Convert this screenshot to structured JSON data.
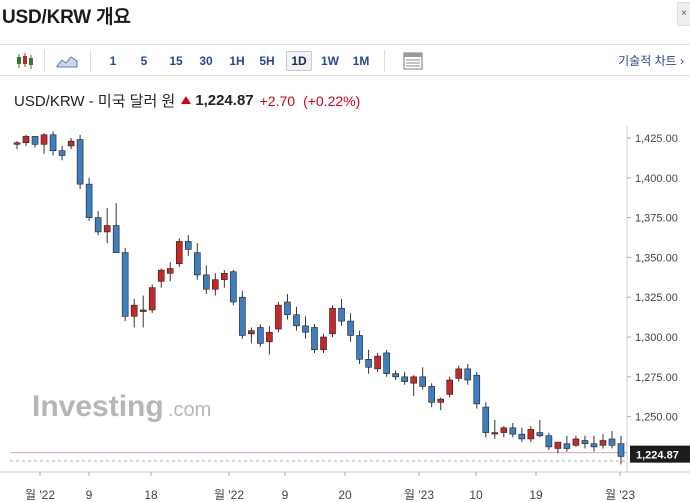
{
  "header": {
    "title": "USD/KRW 개요",
    "close_label": "×"
  },
  "toolbar": {
    "candle_icon": "candlestick-icon",
    "area_icon": "area-chart-icon",
    "intervals": [
      "1",
      "5",
      "15",
      "30",
      "1H",
      "5H",
      "1D",
      "1W",
      "1M"
    ],
    "active_interval": "1D",
    "table_icon": "table-icon",
    "technical_label": "기술적 차트 ›"
  },
  "quote": {
    "name": "USD/KRW - 미국 달러 원",
    "price": "1,224.87",
    "change": "+2.70",
    "change_pct": "(+0.22%)",
    "direction": "up",
    "color": "#d0021b"
  },
  "watermark": {
    "brand": "Investing",
    "suffix": ".com"
  },
  "chart_data": {
    "type": "candlestick",
    "ylim": [
      1219,
      1430
    ],
    "yticks": [
      "1,425.00",
      "1,400.00",
      "1,375.00",
      "1,350.00",
      "1,325.00",
      "1,300.00",
      "1,275.00",
      "1,250.00"
    ],
    "ytick_values": [
      1425,
      1400,
      1375,
      1350,
      1325,
      1300,
      1275,
      1250
    ],
    "xticks": [
      "월 '22",
      "9",
      "18",
      "월 '22",
      "9",
      "20",
      "월 '23",
      "10",
      "19",
      "월 '23"
    ],
    "last_price_label": "1,224.87",
    "last_price": 1224.87,
    "prev_close": 1222.17,
    "up_color": "#c62828",
    "down_color": "#3d7ebf",
    "candles": [
      [
        1421,
        1423,
        1418,
        1422
      ],
      [
        1422,
        1427,
        1420,
        1426
      ],
      [
        1426,
        1426,
        1419,
        1421
      ],
      [
        1421,
        1428,
        1415,
        1427
      ],
      [
        1427,
        1429,
        1414,
        1417
      ],
      [
        1417,
        1420,
        1411,
        1414
      ],
      [
        1420,
        1425,
        1418,
        1423
      ],
      [
        1424,
        1427,
        1393,
        1396
      ],
      [
        1396,
        1400,
        1373,
        1375
      ],
      [
        1375,
        1379,
        1364,
        1366
      ],
      [
        1366,
        1381,
        1359,
        1370
      ],
      [
        1370,
        1384,
        1353,
        1353
      ],
      [
        1353,
        1356,
        1310,
        1313
      ],
      [
        1313,
        1324,
        1306,
        1320
      ],
      [
        1316,
        1326,
        1306,
        1317
      ],
      [
        1317,
        1333,
        1315,
        1331
      ],
      [
        1335,
        1343,
        1331,
        1342
      ],
      [
        1340,
        1347,
        1335,
        1343
      ],
      [
        1346,
        1362,
        1344,
        1360
      ],
      [
        1360,
        1364,
        1351,
        1355
      ],
      [
        1353,
        1359,
        1336,
        1339
      ],
      [
        1339,
        1345,
        1327,
        1330
      ],
      [
        1330,
        1340,
        1326,
        1336
      ],
      [
        1336,
        1342,
        1331,
        1340
      ],
      [
        1341,
        1342,
        1320,
        1322
      ],
      [
        1325,
        1329,
        1299,
        1301
      ],
      [
        1302,
        1306,
        1296,
        1304
      ],
      [
        1306,
        1308,
        1294,
        1296
      ],
      [
        1297,
        1307,
        1289,
        1303
      ],
      [
        1305,
        1322,
        1303,
        1320
      ],
      [
        1322,
        1327,
        1311,
        1314
      ],
      [
        1314,
        1319,
        1304,
        1307
      ],
      [
        1307,
        1313,
        1299,
        1303
      ],
      [
        1306,
        1308,
        1290,
        1292
      ],
      [
        1292,
        1302,
        1290,
        1300
      ],
      [
        1302,
        1320,
        1300,
        1318
      ],
      [
        1318,
        1324,
        1307,
        1310
      ],
      [
        1310,
        1315,
        1297,
        1301
      ],
      [
        1301,
        1304,
        1283,
        1286
      ],
      [
        1286,
        1292,
        1277,
        1281
      ],
      [
        1280,
        1290,
        1278,
        1288
      ],
      [
        1290,
        1292,
        1275,
        1277
      ],
      [
        1277,
        1279,
        1273,
        1275
      ],
      [
        1275,
        1278,
        1270,
        1272
      ],
      [
        1271,
        1276,
        1263,
        1275
      ],
      [
        1275,
        1281,
        1267,
        1269
      ],
      [
        1269,
        1271,
        1256,
        1259
      ],
      [
        1259,
        1262,
        1254,
        1261
      ],
      [
        1264,
        1275,
        1262,
        1273
      ],
      [
        1274,
        1282,
        1272,
        1280
      ],
      [
        1280,
        1283,
        1270,
        1273
      ],
      [
        1276,
        1278,
        1255,
        1258
      ],
      [
        1256,
        1259,
        1237,
        1240
      ],
      [
        1240,
        1248,
        1236,
        1240
      ],
      [
        1240,
        1244,
        1237,
        1243
      ],
      [
        1243,
        1246,
        1237,
        1239
      ],
      [
        1239,
        1243,
        1234,
        1236
      ],
      [
        1236,
        1244,
        1234,
        1242
      ],
      [
        1240,
        1248,
        1237,
        1238
      ],
      [
        1238,
        1240,
        1229,
        1231
      ],
      [
        1230,
        1234,
        1227,
        1234
      ],
      [
        1233,
        1238,
        1228,
        1230
      ],
      [
        1232,
        1238,
        1231,
        1236
      ],
      [
        1235,
        1238,
        1230,
        1233
      ],
      [
        1233,
        1238,
        1228,
        1231
      ],
      [
        1232,
        1239,
        1230,
        1235
      ],
      [
        1236,
        1241,
        1230,
        1232
      ],
      [
        1233,
        1238,
        1220,
        1225
      ]
    ]
  }
}
